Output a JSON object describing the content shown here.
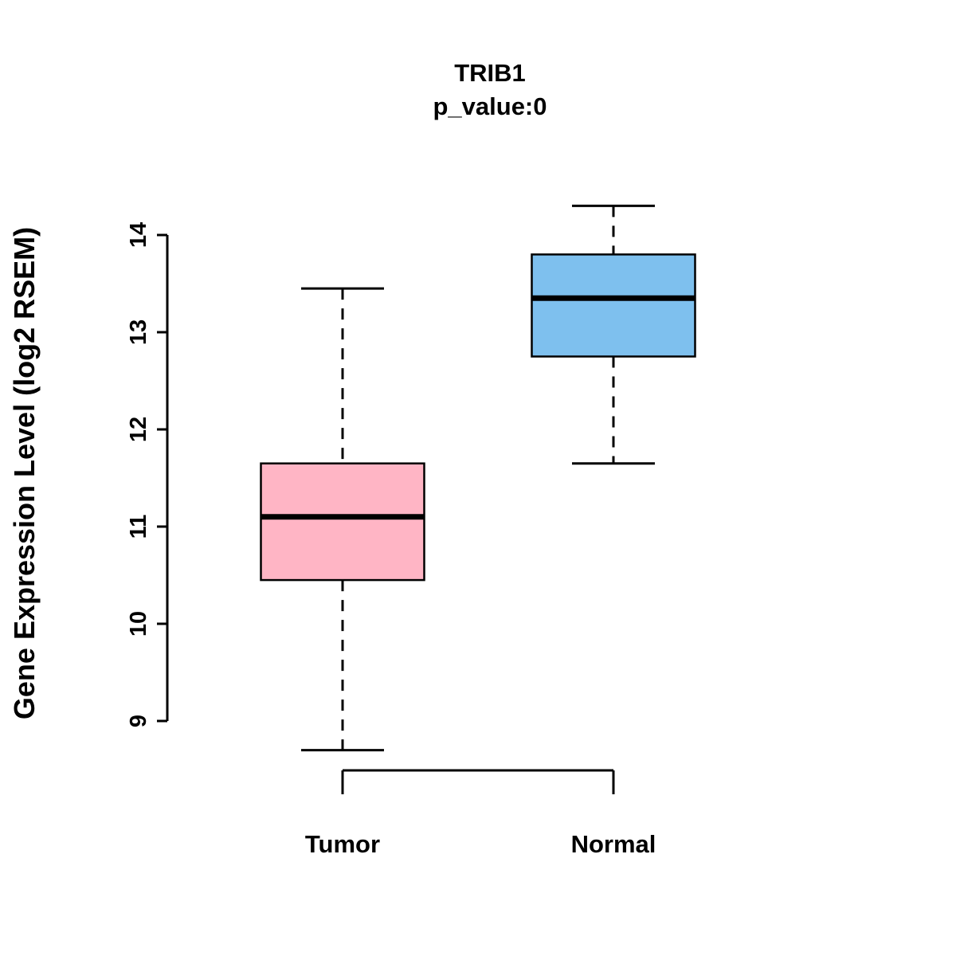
{
  "chart_data": {
    "type": "boxplot",
    "title": "TRIB1",
    "subtitle": "p_value:0",
    "ylabel": "Gene Expression Level (log2 RSEM)",
    "xlabel": "",
    "categories": [
      "Tumor",
      "Normal"
    ],
    "y_ticks": [
      9,
      10,
      11,
      12,
      13,
      14
    ],
    "ylim": [
      9,
      14
    ],
    "grid": false,
    "legend": false,
    "axis_color": "#000000",
    "series": [
      {
        "name": "Tumor",
        "color": "#FFB5C5",
        "whisker_low": 8.7,
        "q1": 10.45,
        "median": 11.1,
        "q3": 11.65,
        "whisker_high": 13.45
      },
      {
        "name": "Normal",
        "color": "#7EC0EE",
        "whisker_low": 11.65,
        "q1": 12.75,
        "median": 13.35,
        "q3": 13.8,
        "whisker_high": 14.3
      }
    ]
  }
}
